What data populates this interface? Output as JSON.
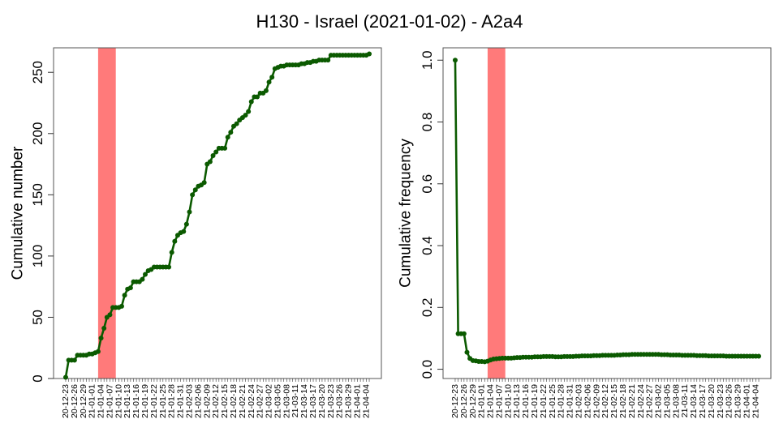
{
  "title": "H130 - Israel (2021-01-02) - A2a4",
  "colors": {
    "line": "#0b5a00",
    "highlight": "#ff7a7a",
    "frame": "#555555"
  },
  "chart_data": [
    {
      "type": "line",
      "ylabel": "Cumulative number",
      "ylim": [
        0,
        270
      ],
      "yticks": [
        0,
        50,
        100,
        150,
        200,
        250
      ],
      "ytick_labels": [
        "0",
        "50",
        "100",
        "150",
        "200",
        "250"
      ],
      "highlight": {
        "from": 11,
        "to": 17
      },
      "x_count": 104,
      "xtick_step": 3,
      "xtick_labels": [
        "20-12-23",
        "20-12-26",
        "20-12-29",
        "21-01-01",
        "21-01-04",
        "21-01-07",
        "21-01-10",
        "21-01-13",
        "21-01-16",
        "21-01-19",
        "21-01-22",
        "21-01-25",
        "21-01-28",
        "21-01-31",
        "21-02-03",
        "21-02-06",
        "21-02-09",
        "21-02-12",
        "21-02-15",
        "21-02-18",
        "21-02-21",
        "21-02-24",
        "21-02-27",
        "21-03-02",
        "21-03-05",
        "21-03-08",
        "21-03-11",
        "21-03-14",
        "21-03-17",
        "21-03-20",
        "21-03-23",
        "21-03-26",
        "21-03-29",
        "21-04-01",
        "21-04-04"
      ],
      "values": [
        1,
        15,
        15,
        15,
        19,
        19,
        19,
        19,
        20,
        20,
        21,
        22,
        33,
        41,
        50,
        52,
        58,
        58,
        58,
        59,
        68,
        73,
        74,
        79,
        79,
        79,
        81,
        85,
        88,
        89,
        91,
        91,
        91,
        91,
        91,
        91,
        103,
        112,
        117,
        119,
        120,
        126,
        136,
        150,
        154,
        157,
        158,
        160,
        175,
        177,
        182,
        185,
        188,
        188,
        188,
        197,
        201,
        206,
        208,
        211,
        213,
        215,
        218,
        226,
        230,
        230,
        233,
        233,
        235,
        242,
        246,
        253,
        254,
        255,
        255,
        256,
        256,
        256,
        256,
        256,
        257,
        257,
        258,
        258,
        259,
        259,
        260,
        260,
        260,
        260,
        264,
        264,
        264,
        264,
        264,
        264,
        264,
        264,
        264,
        264,
        264,
        264,
        264,
        265
      ]
    },
    {
      "type": "line",
      "ylabel": "Cumulative frequency",
      "ylim": [
        -0.03,
        1.04
      ],
      "yticks": [
        0,
        0.2,
        0.4,
        0.6,
        0.8,
        1.0
      ],
      "ytick_labels": [
        "0.0",
        "0.2",
        "0.4",
        "0.6",
        "0.8",
        "1.0"
      ],
      "highlight": {
        "from": 11,
        "to": 17
      },
      "x_count": 104,
      "xtick_step": 3,
      "xtick_labels": [
        "20-12-23",
        "20-12-26",
        "20-12-29",
        "21-01-01",
        "21-01-04",
        "21-01-07",
        "21-01-10",
        "21-01-13",
        "21-01-16",
        "21-01-19",
        "21-01-22",
        "21-01-25",
        "21-01-28",
        "21-01-31",
        "21-02-03",
        "21-02-06",
        "21-02-09",
        "21-02-12",
        "21-02-15",
        "21-02-18",
        "21-02-21",
        "21-02-24",
        "21-02-27",
        "21-03-02",
        "21-03-05",
        "21-03-08",
        "21-03-11",
        "21-03-14",
        "21-03-17",
        "21-03-20",
        "21-03-23",
        "21-03-26",
        "21-03-29",
        "21-04-01",
        "21-04-04"
      ],
      "values": [
        1.0,
        0.115,
        0.115,
        0.115,
        0.055,
        0.035,
        0.028,
        0.027,
        0.025,
        0.025,
        0.024,
        0.026,
        0.03,
        0.033,
        0.034,
        0.035,
        0.036,
        0.036,
        0.036,
        0.036,
        0.037,
        0.038,
        0.038,
        0.039,
        0.039,
        0.039,
        0.039,
        0.04,
        0.04,
        0.04,
        0.041,
        0.041,
        0.041,
        0.041,
        0.04,
        0.04,
        0.04,
        0.041,
        0.041,
        0.041,
        0.041,
        0.042,
        0.042,
        0.043,
        0.043,
        0.043,
        0.043,
        0.044,
        0.044,
        0.044,
        0.045,
        0.045,
        0.045,
        0.045,
        0.045,
        0.046,
        0.046,
        0.047,
        0.047,
        0.047,
        0.048,
        0.048,
        0.048,
        0.048,
        0.048,
        0.048,
        0.048,
        0.048,
        0.048,
        0.048,
        0.047,
        0.047,
        0.047,
        0.046,
        0.046,
        0.046,
        0.046,
        0.045,
        0.045,
        0.045,
        0.045,
        0.045,
        0.044,
        0.044,
        0.044,
        0.044,
        0.043,
        0.043,
        0.043,
        0.043,
        0.043,
        0.043,
        0.042,
        0.042,
        0.042,
        0.042,
        0.042,
        0.042,
        0.042,
        0.042,
        0.042,
        0.042,
        0.042,
        0.042
      ]
    }
  ]
}
